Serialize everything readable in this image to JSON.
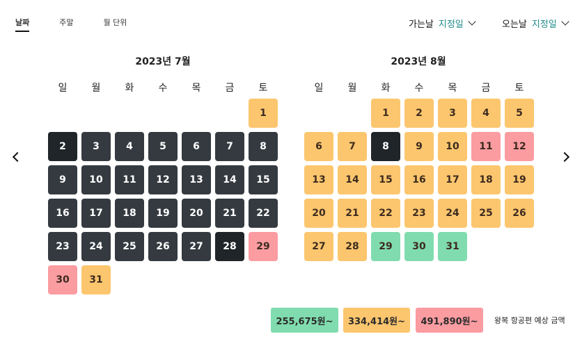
{
  "tabs": [
    "날짜",
    "주말",
    "월 단위"
  ],
  "active_tab": 0,
  "departure": {
    "label": "가는날",
    "value": "지정일"
  },
  "return": {
    "label": "오는날",
    "value": "지정일"
  },
  "weekdays": [
    "일",
    "월",
    "화",
    "수",
    "목",
    "금",
    "토"
  ],
  "colors": {
    "dark": "#343a40",
    "dark_selected": "#1f2529",
    "low": "#80dcae",
    "mid": "#fcc66e",
    "high": "#fb9ca1",
    "text_dark_bg": "#ffffff",
    "text_light_bg": "#3d2b1f",
    "accent": "#1f8a8a"
  },
  "months": [
    {
      "title": "2023년 7월",
      "first_weekday": 6,
      "days": [
        {
          "d": "1",
          "s": "mid"
        },
        {
          "d": "2",
          "s": "dark_selected"
        },
        {
          "d": "3",
          "s": "dark"
        },
        {
          "d": "4",
          "s": "dark"
        },
        {
          "d": "5",
          "s": "dark"
        },
        {
          "d": "6",
          "s": "dark"
        },
        {
          "d": "7",
          "s": "dark"
        },
        {
          "d": "8",
          "s": "dark"
        },
        {
          "d": "9",
          "s": "dark"
        },
        {
          "d": "10",
          "s": "dark"
        },
        {
          "d": "11",
          "s": "dark"
        },
        {
          "d": "12",
          "s": "dark"
        },
        {
          "d": "13",
          "s": "dark"
        },
        {
          "d": "14",
          "s": "dark"
        },
        {
          "d": "15",
          "s": "dark"
        },
        {
          "d": "16",
          "s": "dark"
        },
        {
          "d": "17",
          "s": "dark"
        },
        {
          "d": "18",
          "s": "dark"
        },
        {
          "d": "19",
          "s": "dark"
        },
        {
          "d": "20",
          "s": "dark"
        },
        {
          "d": "21",
          "s": "dark"
        },
        {
          "d": "22",
          "s": "dark"
        },
        {
          "d": "23",
          "s": "dark"
        },
        {
          "d": "24",
          "s": "dark"
        },
        {
          "d": "25",
          "s": "dark"
        },
        {
          "d": "26",
          "s": "dark"
        },
        {
          "d": "27",
          "s": "dark"
        },
        {
          "d": "28",
          "s": "dark_selected"
        },
        {
          "d": "29",
          "s": "high"
        },
        {
          "d": "30",
          "s": "high"
        },
        {
          "d": "31",
          "s": "mid"
        }
      ]
    },
    {
      "title": "2023년 8월",
      "first_weekday": 2,
      "days": [
        {
          "d": "1",
          "s": "mid"
        },
        {
          "d": "2",
          "s": "mid"
        },
        {
          "d": "3",
          "s": "mid"
        },
        {
          "d": "4",
          "s": "mid"
        },
        {
          "d": "5",
          "s": "mid"
        },
        {
          "d": "6",
          "s": "mid"
        },
        {
          "d": "7",
          "s": "mid"
        },
        {
          "d": "8",
          "s": "dark_selected"
        },
        {
          "d": "9",
          "s": "mid"
        },
        {
          "d": "10",
          "s": "mid"
        },
        {
          "d": "11",
          "s": "high"
        },
        {
          "d": "12",
          "s": "high"
        },
        {
          "d": "13",
          "s": "mid"
        },
        {
          "d": "14",
          "s": "mid"
        },
        {
          "d": "15",
          "s": "mid"
        },
        {
          "d": "16",
          "s": "mid"
        },
        {
          "d": "17",
          "s": "mid"
        },
        {
          "d": "18",
          "s": "mid"
        },
        {
          "d": "19",
          "s": "mid"
        },
        {
          "d": "20",
          "s": "mid"
        },
        {
          "d": "21",
          "s": "mid"
        },
        {
          "d": "22",
          "s": "mid"
        },
        {
          "d": "23",
          "s": "mid"
        },
        {
          "d": "24",
          "s": "mid"
        },
        {
          "d": "25",
          "s": "mid"
        },
        {
          "d": "26",
          "s": "mid"
        },
        {
          "d": "27",
          "s": "mid"
        },
        {
          "d": "28",
          "s": "mid"
        },
        {
          "d": "29",
          "s": "low"
        },
        {
          "d": "30",
          "s": "low"
        },
        {
          "d": "31",
          "s": "low"
        }
      ]
    }
  ],
  "legend": [
    {
      "label": "255,675원~",
      "s": "low"
    },
    {
      "label": "334,414원~",
      "s": "mid"
    },
    {
      "label": "491,890원~",
      "s": "high"
    }
  ],
  "legend_note": "왕복 항공편 예상 금액",
  "icons": {
    "prev": "chevron-left-icon",
    "next": "chevron-right-icon",
    "dropdown": "chevron-down-icon"
  }
}
